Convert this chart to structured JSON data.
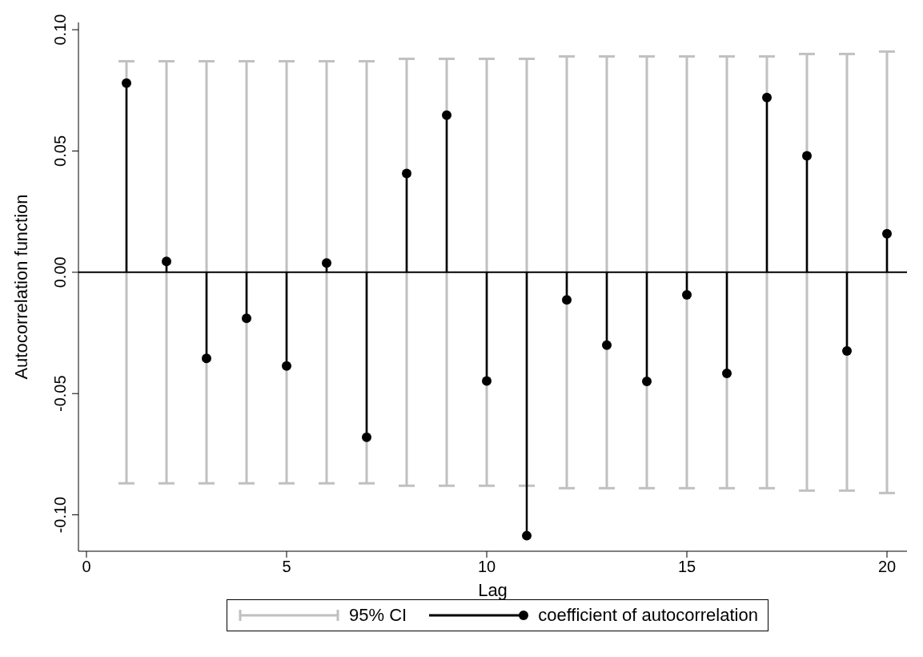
{
  "chart_data": {
    "type": "lollipop",
    "xlabel": "Lag",
    "ylabel": "Autocorrelation function",
    "x": [
      1,
      2,
      3,
      4,
      5,
      6,
      7,
      8,
      9,
      10,
      11,
      12,
      13,
      14,
      15,
      16,
      17,
      18,
      19,
      20
    ],
    "series": [
      {
        "name": "95% CI",
        "type": "bar",
        "color": "#c0c0c0",
        "base": [
          -0.087,
          -0.087,
          -0.087,
          -0.087,
          -0.087,
          -0.087,
          -0.087,
          -0.088,
          -0.088,
          -0.088,
          -0.088,
          -0.089,
          -0.089,
          -0.089,
          -0.089,
          -0.089,
          -0.089,
          -0.09,
          -0.09,
          -0.091
        ],
        "values": [
          0.174,
          0.174,
          0.174,
          0.174,
          0.174,
          0.174,
          0.174,
          0.176,
          0.176,
          0.176,
          0.176,
          0.178,
          0.178,
          0.178,
          0.178,
          0.178,
          0.178,
          0.18,
          0.18,
          0.182
        ]
      },
      {
        "name": "coefficient of autocorrelation",
        "color": "#000000",
        "values": [
          0.078,
          0.0045,
          -0.0355,
          -0.019,
          -0.0386,
          0.0038,
          -0.068,
          0.0407,
          0.0648,
          -0.0448,
          -0.1086,
          -0.0114,
          -0.03,
          -0.045,
          -0.0093,
          -0.0417,
          0.072,
          0.048,
          -0.0324,
          0.0159
        ]
      }
    ],
    "marker": "circle",
    "xlim": [
      -0.2,
      20.5
    ],
    "xticks": [
      0,
      5,
      10,
      15,
      20
    ],
    "ylim": [
      -0.115,
      0.103
    ],
    "yticks": [
      {
        "value": -0.1,
        "label": "-0.10"
      },
      {
        "value": -0.05,
        "label": "-0.05"
      },
      {
        "value": 0,
        "label": "0.00"
      },
      {
        "value": 0.05,
        "label": "0.05"
      },
      {
        "value": 0.1,
        "label": "0.10"
      }
    ],
    "ref_lines": [
      {
        "axis": "y",
        "value": 0,
        "color": "#000000"
      }
    ],
    "grid": false,
    "legend": "bottom"
  }
}
